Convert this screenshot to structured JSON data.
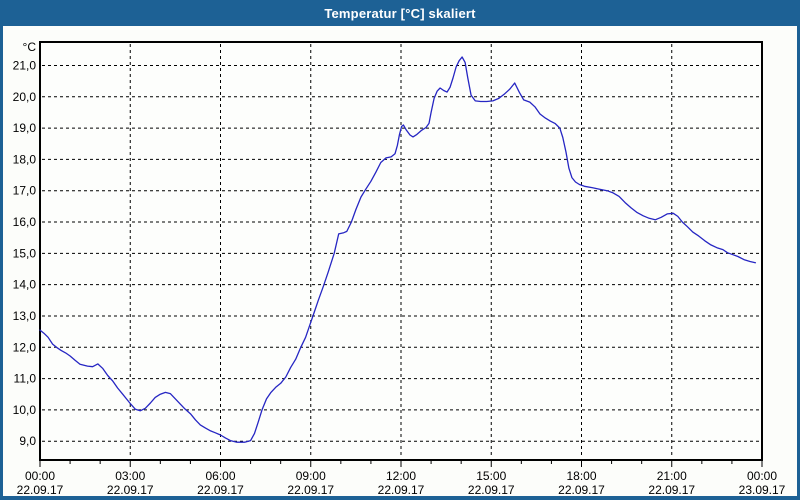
{
  "window": {
    "title": "Temperatur [°C] skaliert",
    "titlebar_color": "#1d6195",
    "border_color": "#1d6195",
    "background_color": "#fcfdfa"
  },
  "chart_data": {
    "type": "line",
    "title": "Temperatur [°C] skaliert",
    "unit_label": "°C",
    "line_color": "#2626c3",
    "axis_color": "#000000",
    "plot_background": "#fdfefc",
    "grid": "dashed",
    "legend": "none",
    "x_axis": {
      "range_hours": [
        0,
        24
      ],
      "major_tick_step_hours": 3,
      "minor_tick_step_hours": 1,
      "tick_labels": [
        {
          "time": "00:00",
          "date": "22.09.17"
        },
        {
          "time": "03:00",
          "date": "22.09.17"
        },
        {
          "time": "06:00",
          "date": "22.09.17"
        },
        {
          "time": "09:00",
          "date": "22.09.17"
        },
        {
          "time": "12:00",
          "date": "22.09.17"
        },
        {
          "time": "15:00",
          "date": "22.09.17"
        },
        {
          "time": "18:00",
          "date": "22.09.17"
        },
        {
          "time": "21:00",
          "date": "22.09.17"
        },
        {
          "time": "00:00",
          "date": "23.09.17"
        }
      ]
    },
    "y_axis": {
      "range": [
        8.4,
        21.75
      ],
      "gridline_values": [
        21,
        20,
        19,
        18,
        17,
        16,
        15,
        14,
        13,
        12,
        11,
        10,
        9
      ],
      "tick_labels": [
        "21,0",
        "20,0",
        "19,0",
        "18,0",
        "17,0",
        "16,0",
        "15,0",
        "14,0",
        "13,0",
        "12,0",
        "11,0",
        "10,0",
        "9,0"
      ]
    },
    "series": [
      {
        "name": "Temperatur",
        "points_hours_value": [
          [
            0.0,
            12.55
          ],
          [
            0.13,
            12.45
          ],
          [
            0.27,
            12.32
          ],
          [
            0.42,
            12.1
          ],
          [
            0.55,
            12.0
          ],
          [
            0.7,
            11.9
          ],
          [
            0.85,
            11.82
          ],
          [
            1.0,
            11.72
          ],
          [
            1.17,
            11.58
          ],
          [
            1.33,
            11.46
          ],
          [
            1.58,
            11.4
          ],
          [
            1.75,
            11.38
          ],
          [
            1.92,
            11.47
          ],
          [
            2.08,
            11.33
          ],
          [
            2.25,
            11.1
          ],
          [
            2.42,
            10.92
          ],
          [
            2.58,
            10.7
          ],
          [
            2.75,
            10.5
          ],
          [
            2.92,
            10.3
          ],
          [
            3.0,
            10.2
          ],
          [
            3.17,
            10.02
          ],
          [
            3.33,
            9.97
          ],
          [
            3.5,
            10.05
          ],
          [
            3.67,
            10.22
          ],
          [
            3.83,
            10.4
          ],
          [
            4.0,
            10.5
          ],
          [
            4.17,
            10.56
          ],
          [
            4.33,
            10.52
          ],
          [
            4.5,
            10.35
          ],
          [
            4.67,
            10.18
          ],
          [
            4.83,
            10.02
          ],
          [
            5.0,
            9.88
          ],
          [
            5.17,
            9.68
          ],
          [
            5.33,
            9.52
          ],
          [
            5.5,
            9.42
          ],
          [
            5.67,
            9.33
          ],
          [
            5.83,
            9.27
          ],
          [
            6.0,
            9.2
          ],
          [
            6.17,
            9.1
          ],
          [
            6.33,
            9.02
          ],
          [
            6.55,
            8.97
          ],
          [
            6.8,
            8.97
          ],
          [
            7.0,
            9.02
          ],
          [
            7.13,
            9.25
          ],
          [
            7.25,
            9.6
          ],
          [
            7.38,
            10.0
          ],
          [
            7.53,
            10.35
          ],
          [
            7.67,
            10.55
          ],
          [
            7.83,
            10.72
          ],
          [
            8.0,
            10.85
          ],
          [
            8.17,
            11.05
          ],
          [
            8.33,
            11.35
          ],
          [
            8.5,
            11.62
          ],
          [
            8.67,
            12.0
          ],
          [
            8.83,
            12.32
          ],
          [
            9.0,
            12.8
          ],
          [
            9.1,
            13.08
          ],
          [
            9.25,
            13.5
          ],
          [
            9.42,
            13.95
          ],
          [
            9.58,
            14.4
          ],
          [
            9.78,
            15.0
          ],
          [
            9.93,
            15.62
          ],
          [
            10.1,
            15.66
          ],
          [
            10.2,
            15.7
          ],
          [
            10.35,
            16.0
          ],
          [
            10.5,
            16.4
          ],
          [
            10.67,
            16.8
          ],
          [
            10.83,
            17.05
          ],
          [
            11.0,
            17.3
          ],
          [
            11.17,
            17.6
          ],
          [
            11.33,
            17.9
          ],
          [
            11.5,
            18.05
          ],
          [
            11.67,
            18.08
          ],
          [
            11.8,
            18.18
          ],
          [
            11.88,
            18.45
          ],
          [
            11.95,
            18.8
          ],
          [
            12.02,
            19.05
          ],
          [
            12.08,
            19.1
          ],
          [
            12.17,
            18.95
          ],
          [
            12.3,
            18.78
          ],
          [
            12.4,
            18.72
          ],
          [
            12.53,
            18.8
          ],
          [
            12.67,
            18.92
          ],
          [
            12.83,
            19.02
          ],
          [
            12.93,
            19.15
          ],
          [
            13.0,
            19.5
          ],
          [
            13.1,
            19.95
          ],
          [
            13.2,
            20.18
          ],
          [
            13.3,
            20.28
          ],
          [
            13.42,
            20.2
          ],
          [
            13.53,
            20.15
          ],
          [
            13.63,
            20.3
          ],
          [
            13.73,
            20.6
          ],
          [
            13.83,
            20.95
          ],
          [
            13.93,
            21.15
          ],
          [
            14.03,
            21.27
          ],
          [
            14.13,
            21.1
          ],
          [
            14.22,
            20.6
          ],
          [
            14.33,
            20.05
          ],
          [
            14.47,
            19.87
          ],
          [
            14.65,
            19.85
          ],
          [
            14.85,
            19.85
          ],
          [
            15.05,
            19.87
          ],
          [
            15.25,
            19.95
          ],
          [
            15.45,
            20.1
          ],
          [
            15.62,
            20.25
          ],
          [
            15.78,
            20.44
          ],
          [
            15.93,
            20.15
          ],
          [
            16.08,
            19.9
          ],
          [
            16.28,
            19.83
          ],
          [
            16.45,
            19.68
          ],
          [
            16.62,
            19.45
          ],
          [
            16.8,
            19.32
          ],
          [
            16.97,
            19.22
          ],
          [
            17.12,
            19.15
          ],
          [
            17.28,
            19.0
          ],
          [
            17.38,
            18.7
          ],
          [
            17.48,
            18.25
          ],
          [
            17.58,
            17.72
          ],
          [
            17.68,
            17.42
          ],
          [
            17.8,
            17.28
          ],
          [
            17.93,
            17.2
          ],
          [
            18.1,
            17.14
          ],
          [
            18.35,
            17.1
          ],
          [
            18.6,
            17.05
          ],
          [
            18.85,
            17.0
          ],
          [
            19.05,
            16.93
          ],
          [
            19.25,
            16.82
          ],
          [
            19.45,
            16.62
          ],
          [
            19.65,
            16.45
          ],
          [
            19.85,
            16.3
          ],
          [
            20.05,
            16.2
          ],
          [
            20.25,
            16.12
          ],
          [
            20.45,
            16.07
          ],
          [
            20.65,
            16.15
          ],
          [
            20.85,
            16.26
          ],
          [
            21.05,
            16.28
          ],
          [
            21.2,
            16.18
          ],
          [
            21.35,
            16.0
          ],
          [
            21.52,
            15.85
          ],
          [
            21.7,
            15.68
          ],
          [
            21.9,
            15.55
          ],
          [
            22.1,
            15.4
          ],
          [
            22.3,
            15.27
          ],
          [
            22.5,
            15.18
          ],
          [
            22.7,
            15.12
          ],
          [
            22.85,
            15.02
          ],
          [
            23.0,
            14.97
          ],
          [
            23.2,
            14.9
          ],
          [
            23.4,
            14.8
          ],
          [
            23.6,
            14.74
          ],
          [
            23.78,
            14.7
          ]
        ]
      }
    ]
  }
}
